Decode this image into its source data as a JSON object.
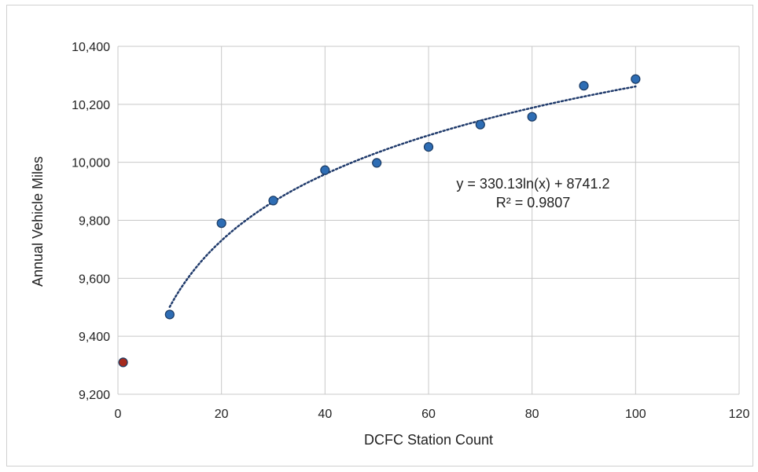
{
  "chart_data": {
    "type": "scatter",
    "title": "",
    "xlabel": "DCFC Station Count",
    "ylabel": "Annual Vehicle Miles",
    "xlim": [
      0,
      120
    ],
    "ylim": [
      9200,
      10400
    ],
    "xticks": [
      "0",
      "20",
      "40",
      "60",
      "80",
      "100",
      "120"
    ],
    "yticks": [
      "9,200",
      "9,400",
      "9,600",
      "9,800",
      "10,000",
      "10,200",
      "10,400"
    ],
    "grid": true,
    "series": [
      {
        "color": "#2e6db4",
        "points": [
          {
            "x": 10,
            "y": 9475
          },
          {
            "x": 20,
            "y": 9790
          },
          {
            "x": 30,
            "y": 9868
          },
          {
            "x": 40,
            "y": 9973
          },
          {
            "x": 50,
            "y": 9998
          },
          {
            "x": 60,
            "y": 10053
          },
          {
            "x": 70,
            "y": 10130
          },
          {
            "x": 80,
            "y": 10157
          },
          {
            "x": 90,
            "y": 10264
          },
          {
            "x": 100,
            "y": 10287
          }
        ]
      },
      {
        "color": "#a52a1e",
        "points": [
          {
            "x": 1,
            "y": 9310
          }
        ]
      }
    ],
    "trendline": {
      "kind": "logarithmic",
      "a": 330.13,
      "b": 8741.2,
      "x_range": [
        10,
        100
      ],
      "style": "dotted",
      "color": "#1f3a6b"
    },
    "annotations": {
      "equation": "y = 330.13ln(x) + 8741.2",
      "r_squared": "R² = 0.9807"
    }
  }
}
